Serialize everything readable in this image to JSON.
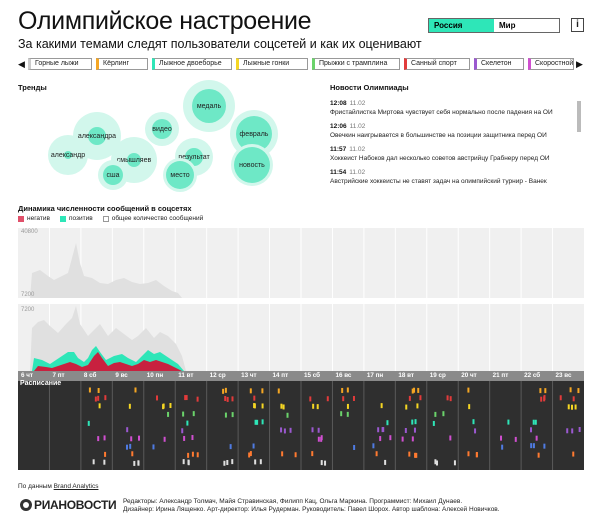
{
  "header": {
    "title": "Олимпийское настроение",
    "subtitle": "За какими темами следят пользователи соцсетей и как их оценивают",
    "toggle": [
      "Россия",
      "Мир"
    ],
    "info_label": "i"
  },
  "tabs": [
    {
      "label": "Горные лыжи",
      "color": "#ffffff"
    },
    {
      "label": "Кёрлинг",
      "color": "#f5a623"
    },
    {
      "label": "Лыжное двоеборье",
      "color": "#2ee6b8"
    },
    {
      "label": "Лыжные гонки",
      "color": "#f5d623"
    },
    {
      "label": "Прыжки с трамплина",
      "color": "#6bd36b"
    },
    {
      "label": "Санный спорт",
      "color": "#e23b3b"
    },
    {
      "label": "Скелетон",
      "color": "#9b59d0"
    },
    {
      "label": "Скоростной",
      "color": "#d04fd0"
    }
  ],
  "trends": {
    "title": "Тренды",
    "words": [
      "медаль",
      "александра",
      "видео",
      "февраль",
      "смышляев",
      "результат",
      "александр",
      "новость",
      "сша",
      "место"
    ]
  },
  "news": {
    "title": "Новости Олимпиады",
    "items": [
      {
        "time": "12:08",
        "date": "11.02",
        "text": "Фристайлистка Миртова чувствует себя нормально после падения на ОИ"
      },
      {
        "time": "12:06",
        "date": "11.02",
        "text": "Овечкин наигрывается в большинстве на позиции защитника перед ОИ"
      },
      {
        "time": "11:57",
        "date": "11.02",
        "text": "Хоккеист Набоков дал несколько советов австрийцу Грабнеру перед ОИ"
      },
      {
        "time": "11:54",
        "date": "11.02",
        "text": "Австрийские хоккеисты не ставят задач на олимпийский турнир - Ванек"
      }
    ]
  },
  "dynamics": {
    "title": "Динамика численности сообщений в соцсетях",
    "legend": [
      {
        "label": "негатив",
        "color": "#e0506a"
      },
      {
        "label": "позитив",
        "color": "#2ee6b8"
      },
      {
        "label": "общее количество сообщений",
        "color": "#e6e6e6"
      }
    ],
    "upper_ticks": [
      "40800",
      "7200"
    ],
    "lower_ticks": [
      "7200"
    ]
  },
  "days": [
    "6 чт",
    "7 пт",
    "8 сб",
    "9 вс",
    "10 пн",
    "11 вт",
    "12 ср",
    "13 чт",
    "14 пт",
    "15 сб",
    "16 вс",
    "17 пн",
    "18 вт",
    "19 ср",
    "20 чт",
    "21 пт",
    "22 сб",
    "23 вс"
  ],
  "schedule": {
    "label": "Расписание"
  },
  "footer": {
    "source_prefix": "По данным",
    "source_link": "Brand Analytics",
    "logo": "РИАНОВОСТИ",
    "credits_line1": "Редакторы: Александр Толмач, Майя Стравинская, Филипп Кац, Ольга Маркина. Программист: Михаил Дунаев.",
    "credits_line2": "Дизайнер: Ирина Лященко. Арт-директор: Илья Рудерман. Руководитель: Павел Шорох. Автор шаблона: Алексей Новичков."
  }
}
